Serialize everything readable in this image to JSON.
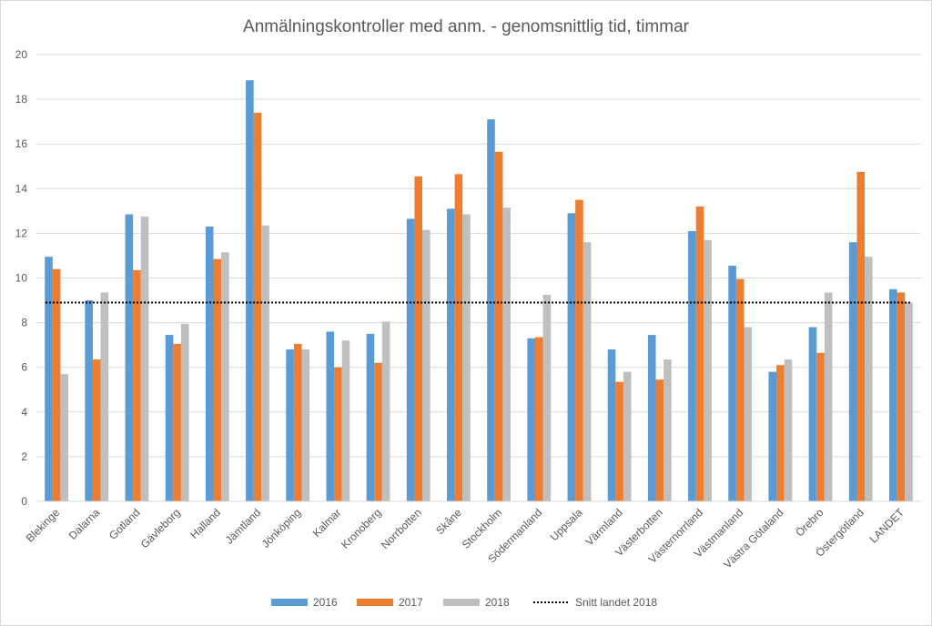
{
  "chart_data": {
    "type": "bar",
    "title": "Anmälningskontroller med anm. - genomsnittlig tid, timmar",
    "xlabel": "",
    "ylabel": "",
    "ylim": [
      0,
      20
    ],
    "yticks": [
      0,
      2,
      4,
      6,
      8,
      10,
      12,
      14,
      16,
      18,
      20
    ],
    "grid": true,
    "legend_position": "bottom",
    "categories": [
      "Blekinge",
      "Dalarna",
      "Gotland",
      "Gävleborg",
      "Halland",
      "Jämtland",
      "Jönköping",
      "Kalmar",
      "Kronoberg",
      "Norrbotten",
      "Skåne",
      "Stockholm",
      "Södermanland",
      "Uppsala",
      "Värmland",
      "Västerbotten",
      "Västernorrland",
      "Västmanland",
      "Västra Götaland",
      "Örebro",
      "Östergötland",
      "LANDET"
    ],
    "series": [
      {
        "name": "2016",
        "color": "#5b9bd5",
        "values": [
          10.95,
          9.0,
          12.85,
          7.45,
          12.3,
          18.85,
          6.8,
          7.6,
          7.5,
          12.65,
          13.1,
          17.1,
          7.3,
          12.9,
          6.8,
          7.45,
          12.1,
          10.55,
          5.8,
          7.8,
          11.6,
          9.5
        ]
      },
      {
        "name": "2017",
        "color": "#ed7d31",
        "values": [
          10.4,
          6.35,
          10.35,
          7.05,
          10.85,
          17.4,
          7.05,
          6.0,
          6.2,
          14.55,
          14.65,
          15.65,
          7.35,
          13.5,
          5.35,
          5.45,
          13.2,
          9.95,
          6.1,
          6.65,
          14.75,
          9.35
        ]
      },
      {
        "name": "2018",
        "color": "#bfbfbf",
        "values": [
          5.7,
          9.35,
          12.75,
          7.95,
          11.15,
          12.35,
          6.8,
          7.2,
          8.05,
          12.15,
          12.85,
          13.15,
          9.25,
          11.6,
          5.8,
          6.35,
          11.7,
          7.8,
          6.35,
          9.35,
          10.95,
          8.9
        ]
      }
    ],
    "reference_line": {
      "name": "Snitt landet 2018",
      "value": 8.9,
      "color": "#000000"
    }
  }
}
